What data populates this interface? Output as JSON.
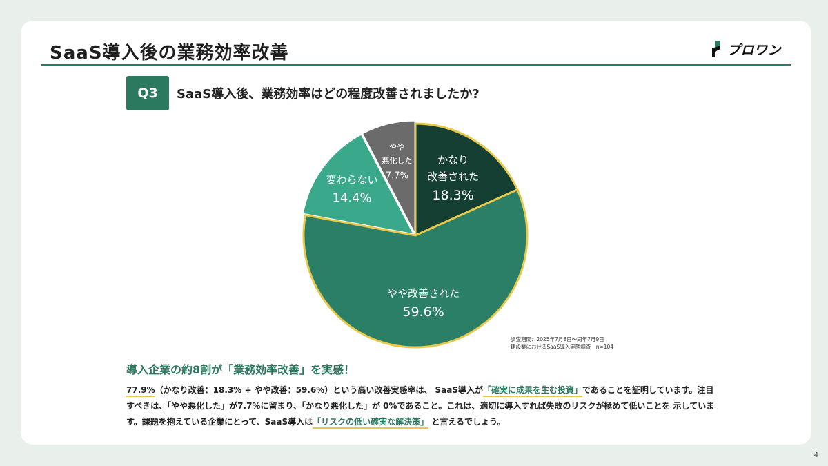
{
  "slide": {
    "title": "SaaS導入後の業務効率改善",
    "logo_text": "プロワン",
    "page_number": "4"
  },
  "question": {
    "badge": "Q3",
    "text": "SaaS導入後、業務効率はどの程度改善されましたか?"
  },
  "chart_data": {
    "type": "pie",
    "title": "",
    "slices": [
      {
        "label_lines": [
          "かなり",
          "改善された"
        ],
        "value": 18.3,
        "value_text": "18.3%",
        "color": "#163f33"
      },
      {
        "label_lines": [
          "やや改善された"
        ],
        "value": 59.6,
        "value_text": "59.6%",
        "color": "#2b7f66"
      },
      {
        "label_lines": [
          "変わらない"
        ],
        "value": 14.4,
        "value_text": "14.4%",
        "color": "#3aa88a"
      },
      {
        "label_lines": [
          "やや",
          "悪化した"
        ],
        "value": 7.7,
        "value_text": "7.7%",
        "color": "#6b6b6b"
      }
    ],
    "highlight_border_color": "#e6c84a",
    "legend": "none"
  },
  "survey_note": {
    "line1": "調査期間：2025年7月8日〜同年7月9日",
    "line2": "建設業におけるSaaS導入実態調査　n=104"
  },
  "summary": {
    "headline": "導入企業の約8割が「業務効率改善」を実感！",
    "p1_hl": "77.9%",
    "p1_rest": "（かなり改善：18.3% + やや改善：59.6%）という高い改善実感率は、 SaaS導入が",
    "p1_green": "「確実に成果を生む投資」",
    "p1_end": "であることを証明しています。注目すべきは、「やや悪化した」が7.7%に留まり、「かなり悪化した」が 0%であること。これは、適切に導入すれば失敗のリスクが極めて低いことを 示しています。課題を抱えている企業にとって、SaaS導入は",
    "p2_green": "「リスクの低い確実な解決策」",
    "p2_end": " と言えるでしょう。"
  }
}
